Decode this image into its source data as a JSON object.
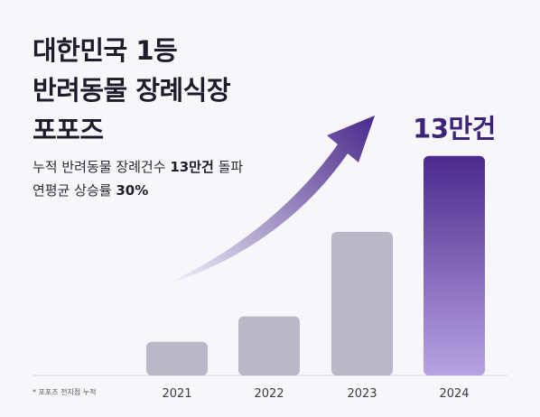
{
  "headline": {
    "line1": "대한민국 1등",
    "line2": "반려동물 장례식장",
    "line3": "포포즈"
  },
  "subtitle": {
    "line1_prefix": "누적 반려동물 장례건수 ",
    "line1_bold": "13만건",
    "line1_suffix": " 돌파",
    "line2_prefix": "연평균 상승률 ",
    "line2_bold": "30%"
  },
  "footnote": "* 포포즈 전지점 누적",
  "colors": {
    "bar_default": "#b8b8c6",
    "bar_highlight_top": "#4a2a8c",
    "bar_highlight_bottom": "#b7a3e3",
    "arrow": "#4a2a8c",
    "baseline": "#d4d4de"
  },
  "chart_data": {
    "type": "bar",
    "categories": [
      "2021",
      "2022",
      "2023",
      "2024"
    ],
    "values": [
      2,
      3.5,
      8.5,
      13
    ],
    "value_unit": "만건",
    "highlight_index": 3,
    "highlight_label": "13만건",
    "ylim": [
      0,
      14
    ],
    "grid": false,
    "trend_arrow": true
  }
}
